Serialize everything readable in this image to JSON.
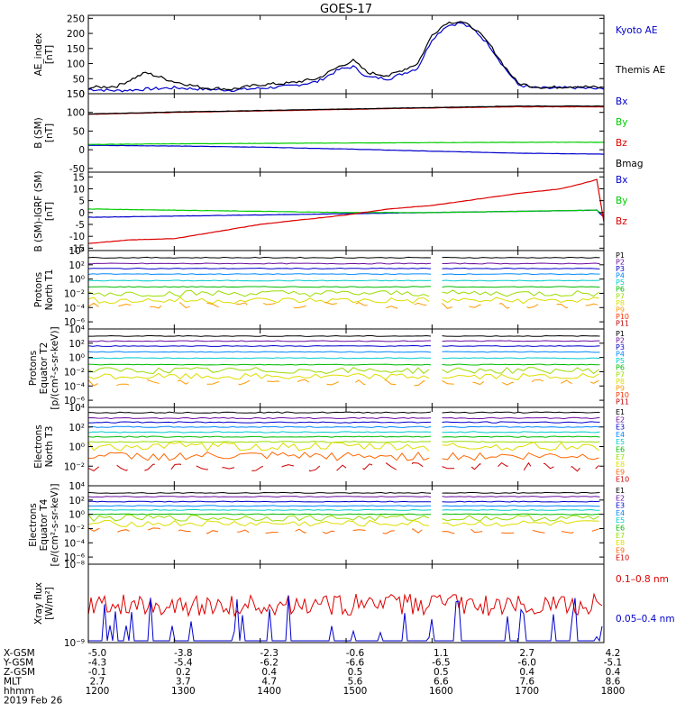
{
  "title": "GOES-17",
  "chart_data": [
    {
      "type": "line",
      "panel": "ae",
      "ylabel": "AE_index [nT]",
      "ylabel_lines": [
        "AE_index",
        "[nT]"
      ],
      "yscale": "linear",
      "ylim": [
        0,
        260
      ],
      "yticks": [
        "0",
        "50",
        "100",
        "150",
        "200",
        "250"
      ],
      "ytick_values": [
        0,
        50,
        100,
        150,
        200,
        250
      ],
      "legend": [
        {
          "label": "Kyoto AE",
          "color": "#0000cc"
        },
        {
          "label": "Themis AE",
          "color": "#000000"
        }
      ],
      "series": [
        {
          "name": "Kyoto AE",
          "color": "#0000cc",
          "x": [
            "12:00",
            "12:20",
            "12:40",
            "13:00",
            "13:20",
            "13:40",
            "14:00",
            "14:20",
            "14:40",
            "14:55",
            "15:05",
            "15:15",
            "15:30",
            "15:50",
            "16:00",
            "16:10",
            "16:20",
            "16:30",
            "16:40",
            "16:50",
            "17:00",
            "17:10",
            "17:20",
            "17:40",
            "18:00"
          ],
          "y": [
            15,
            10,
            15,
            20,
            15,
            12,
            18,
            25,
            40,
            80,
            90,
            55,
            50,
            85,
            180,
            225,
            235,
            210,
            160,
            90,
            30,
            20,
            18,
            20,
            15
          ]
        },
        {
          "name": "Themis AE",
          "color": "#000000",
          "x": [
            "12:00",
            "12:20",
            "12:40",
            "13:00",
            "13:20",
            "13:40",
            "14:00",
            "14:20",
            "14:40",
            "14:55",
            "15:05",
            "15:15",
            "15:30",
            "15:50",
            "16:00",
            "16:10",
            "16:20",
            "16:30",
            "16:40",
            "16:50",
            "17:00",
            "17:10",
            "17:20",
            "17:40",
            "18:00"
          ],
          "y": [
            20,
            25,
            70,
            40,
            20,
            15,
            30,
            35,
            50,
            90,
            110,
            70,
            60,
            100,
            195,
            235,
            240,
            215,
            165,
            95,
            35,
            25,
            20,
            25,
            20
          ]
        }
      ]
    },
    {
      "type": "line",
      "panel": "bsm",
      "ylabel": "B (SM) [nT]",
      "ylabel_lines": [
        "B (SM)",
        "[nT]"
      ],
      "yscale": "linear",
      "ylim": [
        -60,
        150
      ],
      "yticks": [
        "-50",
        "0",
        "50",
        "100",
        "150"
      ],
      "ytick_values": [
        -50,
        0,
        50,
        100,
        150
      ],
      "legend": [
        {
          "label": "Bx",
          "color": "#0000cc"
        },
        {
          "label": "By",
          "color": "#00cc00"
        },
        {
          "label": "Bz",
          "color": "#dd0000"
        },
        {
          "label": "Bmag",
          "color": "#000000"
        }
      ],
      "series": [
        {
          "name": "Bx",
          "color": "#0000cc",
          "x": [
            "12:00",
            "13:00",
            "14:00",
            "15:00",
            "16:00",
            "17:00",
            "18:00"
          ],
          "y": [
            12,
            10,
            7,
            2,
            -4,
            -9,
            -12
          ]
        },
        {
          "name": "By",
          "color": "#00cc00",
          "x": [
            "12:00",
            "13:00",
            "14:00",
            "15:00",
            "16:00",
            "17:00",
            "18:00"
          ],
          "y": [
            14,
            16,
            17,
            18,
            19,
            20,
            20
          ]
        },
        {
          "name": "Bz",
          "color": "#dd0000",
          "x": [
            "12:00",
            "13:00",
            "14:00",
            "15:00",
            "16:00",
            "17:00",
            "18:00"
          ],
          "y": [
            95,
            100,
            104,
            108,
            112,
            115,
            115
          ]
        },
        {
          "name": "Bmag",
          "color": "#000000",
          "x": [
            "12:00",
            "13:00",
            "14:00",
            "15:00",
            "16:00",
            "17:00",
            "18:00"
          ],
          "y": [
            96,
            101,
            105,
            109,
            113,
            117,
            117
          ]
        }
      ]
    },
    {
      "type": "line",
      "panel": "igrf",
      "ylabel": "B (SM)-IGRF (SM) [nT]",
      "ylabel_lines": [
        "B (SM)-IGRF (SM)",
        "[nT]"
      ],
      "yscale": "linear",
      "ylim": [
        -16,
        17
      ],
      "yticks": [
        "-15",
        "-10",
        "-5",
        "0",
        "5",
        "10",
        "15"
      ],
      "ytick_values": [
        -15,
        -10,
        -5,
        0,
        5,
        10,
        15
      ],
      "legend": [
        {
          "label": "Bx",
          "color": "#0000cc"
        },
        {
          "label": "By",
          "color": "#00cc00"
        },
        {
          "label": "Bz",
          "color": "#dd0000"
        }
      ],
      "series": [
        {
          "name": "Bx",
          "color": "#0000cc",
          "x": [
            "12:00",
            "13:00",
            "14:00",
            "15:00",
            "16:00",
            "17:00",
            "17:55",
            "18:00"
          ],
          "y": [
            -2,
            -1.5,
            -1,
            -0.5,
            0,
            0.5,
            1,
            -2
          ]
        },
        {
          "name": "By",
          "color": "#00cc00",
          "x": [
            "12:00",
            "13:00",
            "14:00",
            "15:00",
            "16:00",
            "17:00",
            "17:55",
            "18:00"
          ],
          "y": [
            1.5,
            1,
            0.5,
            0,
            0,
            0.5,
            1,
            -1
          ]
        },
        {
          "name": "Bz",
          "color": "#dd0000",
          "x": [
            "12:00",
            "12:30",
            "13:00",
            "13:30",
            "14:00",
            "14:30",
            "15:00",
            "15:30",
            "16:00",
            "16:30",
            "17:00",
            "17:30",
            "17:50",
            "17:55",
            "18:00"
          ],
          "y": [
            -13,
            -11.5,
            -11,
            -8,
            -5,
            -3,
            -1,
            1.5,
            3,
            5.5,
            8,
            10,
            13,
            14,
            -4
          ]
        }
      ]
    },
    {
      "type": "line",
      "panel": "protons-t1",
      "ylabel": "Protons North T1",
      "ylabel_lines": [
        "Protons",
        "North T1"
      ],
      "yscale": "log",
      "ylim": [
        1e-07,
        10000
      ],
      "yticks": [
        "10⁻⁶",
        "10⁻⁴",
        "10⁻²",
        "10⁰",
        "10²",
        "10⁴"
      ],
      "ytick_values": [
        -6,
        -4,
        -2,
        0,
        2,
        4
      ],
      "legend": [
        {
          "label": "P1",
          "color": "#000000"
        },
        {
          "label": "P2",
          "color": "#6a0da0"
        },
        {
          "label": "P3",
          "color": "#0000cc"
        },
        {
          "label": "P4",
          "color": "#0088ff"
        },
        {
          "label": "P5",
          "color": "#00cccc"
        },
        {
          "label": "P6",
          "color": "#00bb00"
        },
        {
          "label": "P7",
          "color": "#99dd00"
        },
        {
          "label": "P8",
          "color": "#dddd00"
        },
        {
          "label": "P9",
          "color": "#ff9900"
        },
        {
          "label": "P10",
          "color": "#ff3300"
        },
        {
          "label": "P11",
          "color": "#bb0000"
        }
      ],
      "series_levels": [
        1000,
        150,
        30,
        5,
        0.6,
        0.08,
        0.01,
        0.001,
        0.0002
      ],
      "gap": [
        "16:00",
        "16:07"
      ]
    },
    {
      "type": "line",
      "panel": "protons-t2",
      "ylabel": "Protons Equator T2 [p/(cm²-s-sr-keV)]",
      "ylabel_lines": [
        "Protons",
        "Equator T2",
        "[p/(cm²-s-sr-keV)]"
      ],
      "yscale": "log",
      "ylim": [
        1e-07,
        10000
      ],
      "yticks": [
        "10⁻⁶",
        "10⁻⁴",
        "10⁻²",
        "10⁰",
        "10²",
        "10⁴"
      ],
      "ytick_values": [
        -6,
        -4,
        -2,
        0,
        2,
        4
      ],
      "legend": [
        {
          "label": "P1",
          "color": "#000000"
        },
        {
          "label": "P2",
          "color": "#6a0da0"
        },
        {
          "label": "P3",
          "color": "#0000cc"
        },
        {
          "label": "P4",
          "color": "#0088ff"
        },
        {
          "label": "P5",
          "color": "#00cccc"
        },
        {
          "label": "P6",
          "color": "#00bb00"
        },
        {
          "label": "P7",
          "color": "#99dd00"
        },
        {
          "label": "P8",
          "color": "#dddd00"
        },
        {
          "label": "P9",
          "color": "#ff9900"
        },
        {
          "label": "P10",
          "color": "#ff3300"
        },
        {
          "label": "P11",
          "color": "#bb0000"
        }
      ],
      "series_levels": [
        1000,
        200,
        40,
        6,
        0.8,
        0.1,
        0.015,
        0.002,
        0.0003
      ],
      "gap": [
        "16:00",
        "16:07"
      ]
    },
    {
      "type": "line",
      "panel": "electrons-t3",
      "ylabel": "Electrons North T3",
      "ylabel_lines": [
        "Electrons",
        "North T3"
      ],
      "yscale": "log",
      "ylim": [
        0.0001,
        10000
      ],
      "yticks": [
        "10⁻²",
        "10⁰",
        "10²",
        "10⁴"
      ],
      "ytick_values": [
        -2,
        0,
        2,
        4
      ],
      "legend": [
        {
          "label": "E1",
          "color": "#000000"
        },
        {
          "label": "E2",
          "color": "#6a0da0"
        },
        {
          "label": "E3",
          "color": "#0000cc"
        },
        {
          "label": "E4",
          "color": "#0088ff"
        },
        {
          "label": "E5",
          "color": "#00cccc"
        },
        {
          "label": "E6",
          "color": "#00bb00"
        },
        {
          "label": "E7",
          "color": "#99dd00"
        },
        {
          "label": "E8",
          "color": "#dddd00"
        },
        {
          "label": "E9",
          "color": "#ff6600"
        },
        {
          "label": "E10",
          "color": "#cc0000"
        }
      ],
      "series_levels": [
        3000,
        800,
        300,
        100,
        30,
        10,
        3,
        1,
        0.1,
        0.008
      ],
      "gap": [
        "16:00",
        "16:07"
      ]
    },
    {
      "type": "line",
      "panel": "electrons-t4",
      "ylabel": "Electrons Equator T4 [e/(cm²-s-sr-keV)]",
      "ylabel_lines": [
        "Electrons",
        "Equator T4",
        "[e/(cm²-s-sr-keV)]"
      ],
      "yscale": "log",
      "ylim": [
        1e-07,
        10000
      ],
      "yticks": [
        "10⁻⁶",
        "10⁻⁴",
        "10⁻²",
        "10⁰",
        "10²",
        "10⁴"
      ],
      "ytick_values": [
        -6,
        -4,
        -2,
        0,
        2,
        4
      ],
      "legend": [
        {
          "label": "E1",
          "color": "#000000"
        },
        {
          "label": "E2",
          "color": "#6a0da0"
        },
        {
          "label": "E3",
          "color": "#0000cc"
        },
        {
          "label": "E4",
          "color": "#0088ff"
        },
        {
          "label": "E5",
          "color": "#00cccc"
        },
        {
          "label": "E6",
          "color": "#00bb00"
        },
        {
          "label": "E7",
          "color": "#99dd00"
        },
        {
          "label": "E8",
          "color": "#dddd00"
        },
        {
          "label": "E9",
          "color": "#ff6600"
        },
        {
          "label": "E10",
          "color": "#cc0000"
        }
      ],
      "series_levels": [
        1000,
        300,
        60,
        15,
        4,
        1,
        0.3,
        0.05,
        0.005
      ],
      "gap": [
        "16:00",
        "16:07"
      ]
    },
    {
      "type": "line",
      "panel": "xray",
      "ylabel": "Xray flux [W/m²]",
      "ylabel_lines": [
        "Xray flux",
        "[W/m²]"
      ],
      "yscale": "log",
      "ylim": [
        1e-09,
        1e-08
      ],
      "yticks": [
        "10⁻⁹",
        "10⁻⁸"
      ],
      "ytick_values": [
        -9,
        -8
      ],
      "legend": [
        {
          "label": "0.1–0.8 nm",
          "color": "#dd0000"
        },
        {
          "label": "0.05–0.4 nm",
          "color": "#0000cc"
        }
      ]
    }
  ],
  "xaxis": {
    "rows": [
      {
        "label": "X-GSM",
        "values": [
          "-5.0",
          "-3.8",
          "-2.3",
          "-0.6",
          "1.1",
          "2.7",
          "4.2"
        ]
      },
      {
        "label": "Y-GSM",
        "values": [
          "-4.3",
          "-5.4",
          "-6.2",
          "-6.6",
          "-6.5",
          "-6.0",
          "-5.1"
        ]
      },
      {
        "label": "Z-GSM",
        "values": [
          "-0.1",
          "0.2",
          "0.4",
          "0.5",
          "0.5",
          "0.4",
          "0.4"
        ]
      },
      {
        "label": "MLT",
        "values": [
          "2.7",
          "3.7",
          "4.7",
          "5.6",
          "6.6",
          "7.6",
          "8.6"
        ]
      },
      {
        "label": "hhmm",
        "values": [
          "1200",
          "1300",
          "1400",
          "1500",
          "1600",
          "1700",
          "1800"
        ]
      }
    ],
    "date": "2019 Feb 26"
  }
}
